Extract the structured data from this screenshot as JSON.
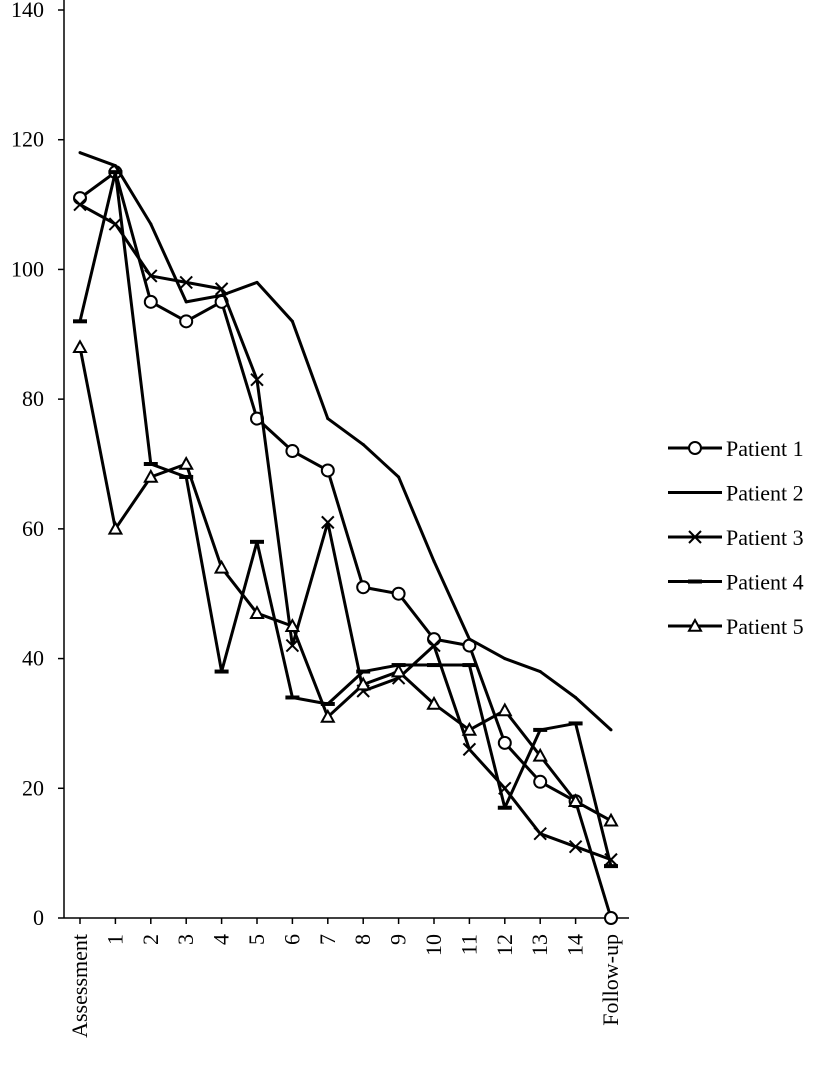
{
  "chart_data": {
    "type": "line",
    "title": "",
    "xlabel": "",
    "ylabel": "",
    "ylim": [
      0,
      140
    ],
    "yticks": [
      0,
      20,
      40,
      60,
      80,
      100,
      120,
      140
    ],
    "categories": [
      "Assessment",
      "1",
      "2",
      "3",
      "4",
      "5",
      "6",
      "7",
      "8",
      "9",
      "10",
      "11",
      "12",
      "13",
      "14",
      "Follow-up"
    ],
    "grid": false,
    "legend_position": "right",
    "line_color": "#000000",
    "series": [
      {
        "name": "Patient 1",
        "marker": "circle",
        "values": [
          111,
          115,
          95,
          92,
          95,
          77,
          72,
          69,
          51,
          50,
          43,
          42,
          27,
          21,
          18,
          0
        ]
      },
      {
        "name": "Patient 2",
        "marker": "none",
        "values": [
          118,
          116,
          107,
          95,
          96,
          98,
          92,
          77,
          73,
          68,
          55,
          43,
          40,
          38,
          34,
          29
        ]
      },
      {
        "name": "Patient 3",
        "marker": "x",
        "values": [
          110,
          107,
          99,
          98,
          97,
          83,
          42,
          61,
          35,
          37,
          42,
          26,
          20,
          13,
          11,
          9
        ]
      },
      {
        "name": "Patient 4",
        "marker": "dash",
        "values": [
          92,
          115,
          70,
          68,
          38,
          58,
          34,
          33,
          38,
          39,
          39,
          39,
          17,
          29,
          30,
          8
        ]
      },
      {
        "name": "Patient 5",
        "marker": "triangle",
        "values": [
          88,
          60,
          68,
          70,
          54,
          47,
          45,
          31,
          36,
          38,
          33,
          29,
          32,
          25,
          18,
          15
        ]
      }
    ]
  }
}
